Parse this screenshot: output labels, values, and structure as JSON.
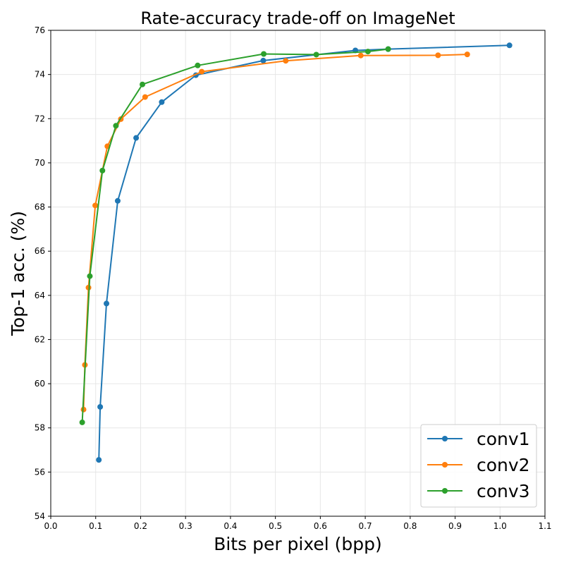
{
  "chart_data": {
    "type": "line",
    "title": "Rate-accuracy trade-off on ImageNet",
    "xlabel": "Bits per pixel (bpp)",
    "ylabel": "Top-1 acc. (%)",
    "xlim": [
      0.0,
      1.1
    ],
    "ylim": [
      54,
      76
    ],
    "x_ticks": [
      "0.0",
      "0.1",
      "0.2",
      "0.3",
      "0.4",
      "0.5",
      "0.6",
      "0.7",
      "0.8",
      "0.9",
      "1.0",
      "1.1"
    ],
    "y_ticks": [
      "54",
      "56",
      "58",
      "60",
      "62",
      "64",
      "66",
      "68",
      "70",
      "72",
      "74",
      "76"
    ],
    "grid": true,
    "legend_position": "bottom-right",
    "markers": "circle",
    "series": [
      {
        "name": "conv1",
        "color": "#1f77b4",
        "points": [
          [
            0.107,
            56.55
          ],
          [
            0.11,
            58.95
          ],
          [
            0.124,
            63.63
          ],
          [
            0.149,
            68.28
          ],
          [
            0.19,
            71.13
          ],
          [
            0.247,
            72.75
          ],
          [
            0.323,
            73.97
          ],
          [
            0.473,
            74.63
          ],
          [
            0.678,
            75.09
          ],
          [
            0.751,
            75.15
          ],
          [
            1.021,
            75.32
          ]
        ]
      },
      {
        "name": "conv2",
        "color": "#ff7f0e",
        "points": [
          [
            0.073,
            58.83
          ],
          [
            0.076,
            60.85
          ],
          [
            0.084,
            64.35
          ],
          [
            0.099,
            68.07
          ],
          [
            0.126,
            70.75
          ],
          [
            0.156,
            71.98
          ],
          [
            0.21,
            72.98
          ],
          [
            0.336,
            74.13
          ],
          [
            0.523,
            74.62
          ],
          [
            0.69,
            74.86
          ],
          [
            0.862,
            74.87
          ],
          [
            0.927,
            74.91
          ]
        ]
      },
      {
        "name": "conv3",
        "color": "#2ca02c",
        "points": [
          [
            0.07,
            58.25
          ],
          [
            0.087,
            64.87
          ],
          [
            0.115,
            69.65
          ],
          [
            0.145,
            71.68
          ],
          [
            0.204,
            73.55
          ],
          [
            0.327,
            74.41
          ],
          [
            0.474,
            74.93
          ],
          [
            0.591,
            74.9
          ],
          [
            0.706,
            75.04
          ],
          [
            0.751,
            75.15
          ]
        ]
      }
    ]
  }
}
